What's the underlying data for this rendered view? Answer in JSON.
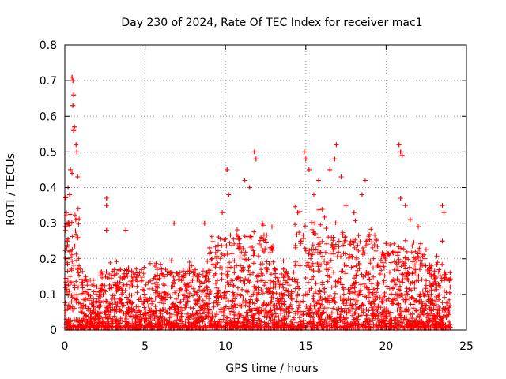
{
  "chart_data": {
    "type": "scatter",
    "title": "Day 230 of 2024, Rate Of TEC Index for receiver mac1",
    "xlabel": "GPS time / hours",
    "ylabel": "ROTI / TECUs",
    "xlim": [
      0,
      25
    ],
    "ylim": [
      0,
      0.8
    ],
    "xticks": [
      0,
      5,
      10,
      15,
      20,
      25
    ],
    "yticks": [
      0,
      0.1,
      0.2,
      0.3,
      0.4,
      0.5,
      0.6,
      0.7,
      0.8
    ],
    "xtick_labels": [
      "0",
      "5",
      "10",
      "15",
      "20",
      "25"
    ],
    "ytick_labels": [
      "0",
      "0.1",
      "0.2",
      "0.3",
      "0.4",
      "0.5",
      "0.6",
      "0.7",
      "0.8"
    ],
    "grid": true,
    "marker": "+",
    "color": "#ff0000",
    "x_range_of_data": [
      0,
      24
    ],
    "notes": "Dense red '+' scatter across 0-24 h; most values below 0.2 with peaks near 0.71 at ~0.6 h and ~0.5 at 11.8, 15, 17, 21 h",
    "series": [
      {
        "name": "ROTI",
        "points": [
          [
            0.45,
            0.71
          ],
          [
            0.5,
            0.7
          ],
          [
            0.55,
            0.66
          ],
          [
            0.5,
            0.63
          ],
          [
            0.6,
            0.57
          ],
          [
            0.55,
            0.56
          ],
          [
            0.7,
            0.52
          ],
          [
            0.75,
            0.5
          ],
          [
            0.35,
            0.45
          ],
          [
            0.45,
            0.44
          ],
          [
            0.8,
            0.43
          ],
          [
            0.2,
            0.4
          ],
          [
            0.3,
            0.38
          ],
          [
            0.25,
            0.3
          ],
          [
            0.15,
            0.25
          ],
          [
            0.3,
            0.22
          ],
          [
            2.6,
            0.37
          ],
          [
            2.6,
            0.35
          ],
          [
            2.6,
            0.28
          ],
          [
            3.8,
            0.28
          ],
          [
            6.8,
            0.3
          ],
          [
            8.7,
            0.3
          ],
          [
            9.8,
            0.33
          ],
          [
            10.1,
            0.45
          ],
          [
            10.2,
            0.38
          ],
          [
            11.2,
            0.42
          ],
          [
            11.5,
            0.4
          ],
          [
            11.8,
            0.5
          ],
          [
            11.9,
            0.48
          ],
          [
            12.3,
            0.3
          ],
          [
            14.5,
            0.33
          ],
          [
            14.9,
            0.5
          ],
          [
            15.0,
            0.48
          ],
          [
            15.2,
            0.45
          ],
          [
            15.5,
            0.38
          ],
          [
            15.8,
            0.42
          ],
          [
            16.5,
            0.45
          ],
          [
            16.8,
            0.48
          ],
          [
            16.9,
            0.52
          ],
          [
            17.2,
            0.43
          ],
          [
            17.5,
            0.35
          ],
          [
            18.0,
            0.33
          ],
          [
            18.5,
            0.38
          ],
          [
            18.7,
            0.42
          ],
          [
            20.8,
            0.52
          ],
          [
            20.9,
            0.5
          ],
          [
            21.0,
            0.49
          ],
          [
            20.9,
            0.37
          ],
          [
            21.2,
            0.35
          ],
          [
            21.5,
            0.31
          ],
          [
            22.0,
            0.29
          ],
          [
            23.5,
            0.35
          ],
          [
            23.6,
            0.33
          ],
          [
            23.5,
            0.25
          ]
        ]
      }
    ]
  }
}
